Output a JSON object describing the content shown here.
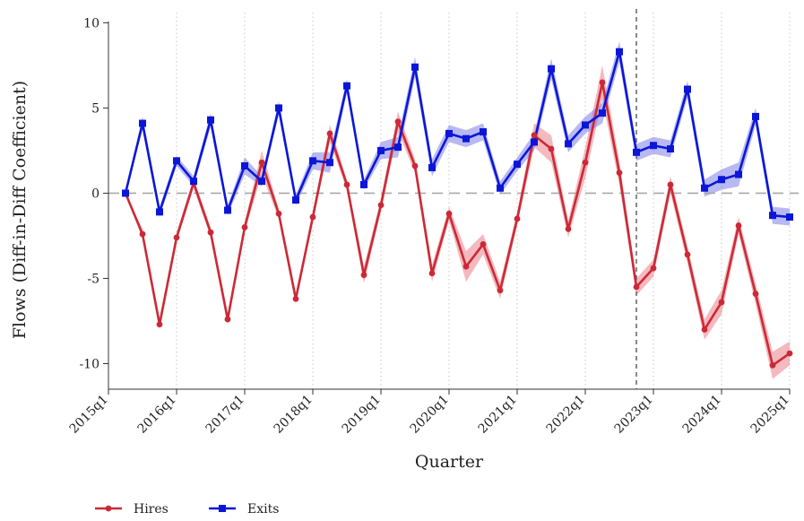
{
  "chart_data": {
    "type": "line",
    "title": "",
    "xlabel": "Quarter",
    "ylabel": "Flows (Diff-in-Diff Coefficient)",
    "x_range": [
      0,
      40
    ],
    "ylim": [
      -11.5,
      10.6
    ],
    "y_ticks": [
      10,
      5,
      0,
      -5,
      -10
    ],
    "y_tick_labels": [
      "10",
      "5",
      "0",
      "-5",
      "-10"
    ],
    "x_ticks": [
      0,
      4,
      8,
      12,
      16,
      20,
      24,
      28,
      32,
      36,
      40
    ],
    "x_tick_labels": [
      "2015q1",
      "2016q1",
      "2017q1",
      "2018q1",
      "2019q1",
      "2020q1",
      "2021q1",
      "2022q1",
      "2023q1",
      "2024q1",
      "2025q1"
    ],
    "reference_line_y": 0,
    "event_line_x": 31,
    "series": [
      {
        "name": "Hires",
        "color": "#cc2936",
        "band_color": "#e98088",
        "marker": "circle",
        "x": [
          1,
          2,
          3,
          4,
          5,
          6,
          7,
          8,
          9,
          10,
          11,
          12,
          13,
          14,
          15,
          16,
          17,
          18,
          19,
          20,
          21,
          22,
          23,
          24,
          25,
          26,
          27,
          28,
          29,
          30,
          31,
          32,
          33,
          34,
          35,
          36,
          37,
          38,
          39,
          40
        ],
        "values": [
          0,
          -2.4,
          -7.7,
          -2.6,
          0.6,
          -2.3,
          -7.4,
          -2.0,
          1.8,
          -1.2,
          -6.2,
          -1.4,
          3.5,
          0.5,
          -4.8,
          -0.7,
          4.2,
          1.6,
          -4.7,
          -1.2,
          -4.3,
          -3.0,
          -5.7,
          -1.5,
          3.4,
          2.6,
          -2.1,
          1.8,
          6.5,
          1.2,
          -5.5,
          -4.4,
          0.5,
          -3.6,
          -8.0,
          -6.4,
          -1.9,
          -5.9,
          -10.1,
          -9.4
        ],
        "band_halfwidth": [
          0,
          0.3,
          0.3,
          0.3,
          0.3,
          0.3,
          0.3,
          0.3,
          0.7,
          0.3,
          0.3,
          0.3,
          0.5,
          0.3,
          0.5,
          0.4,
          0.6,
          0.4,
          0.5,
          0.4,
          0.9,
          0.6,
          0.5,
          0.4,
          0.7,
          0.8,
          0.5,
          0.9,
          1.0,
          0.7,
          0.5,
          0.5,
          0.5,
          0.5,
          0.6,
          0.7,
          0.5,
          0.6,
          0.8,
          0.7
        ]
      },
      {
        "name": "Exits",
        "color": "#0b16d8",
        "band_color": "#7d80e8",
        "marker": "square",
        "x": [
          1,
          2,
          3,
          4,
          5,
          6,
          7,
          8,
          9,
          10,
          11,
          12,
          13,
          14,
          15,
          16,
          17,
          18,
          19,
          20,
          21,
          22,
          23,
          24,
          25,
          26,
          27,
          28,
          29,
          30,
          31,
          32,
          33,
          34,
          35,
          36,
          37,
          38,
          39,
          40
        ],
        "values": [
          0,
          4.1,
          -1.1,
          1.9,
          0.7,
          4.3,
          -1.0,
          1.6,
          0.7,
          5.0,
          -0.4,
          1.9,
          1.8,
          6.3,
          0.5,
          2.5,
          2.7,
          7.4,
          1.5,
          3.5,
          3.2,
          3.6,
          0.3,
          1.7,
          3.0,
          7.3,
          2.9,
          4.0,
          4.7,
          8.3,
          2.4,
          2.8,
          2.6,
          6.1,
          0.3,
          0.8,
          1.1,
          4.5,
          -1.3,
          -1.4
        ],
        "band_halfwidth": [
          0,
          0.4,
          0.3,
          0.3,
          0.3,
          0.4,
          0.3,
          0.5,
          0.3,
          0.4,
          0.3,
          0.5,
          0.6,
          0.4,
          0.3,
          0.5,
          0.6,
          0.6,
          0.5,
          0.5,
          0.5,
          0.5,
          0.4,
          0.4,
          0.5,
          0.6,
          0.5,
          0.5,
          0.6,
          0.6,
          0.5,
          0.5,
          0.5,
          0.5,
          0.5,
          0.6,
          0.7,
          0.5,
          0.5,
          0.5
        ]
      }
    ],
    "legend": {
      "position": "bottom-left",
      "entries": [
        "Hires",
        "Exits"
      ]
    }
  }
}
